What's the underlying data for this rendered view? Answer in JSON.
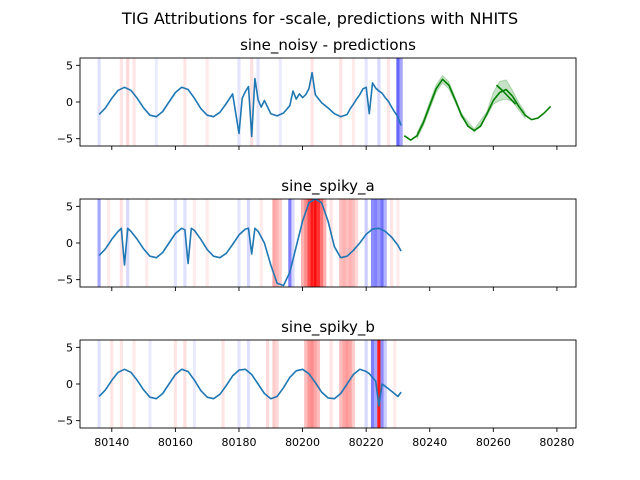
{
  "figure": {
    "suptitle": "TIG Attributions for -scale, predictions with NHITS"
  },
  "chart_data": [
    {
      "type": "line",
      "title": "sine_noisy - predictions",
      "xlim": [
        80130,
        80286
      ],
      "ylim": [
        -6,
        6
      ],
      "yticks": [
        5,
        0,
        -5
      ],
      "xticks": [
        80140,
        80160,
        80180,
        80200,
        80220,
        80240,
        80260,
        80280
      ],
      "show_xtick_labels": false,
      "series": [
        {
          "role": "history",
          "color": "#1f77b4",
          "x": [
            80136,
            80138,
            80140,
            80142,
            80144,
            80146,
            80148,
            80150,
            80152,
            80154,
            80156,
            80158,
            80160,
            80162,
            80164,
            80166,
            80168,
            80170,
            80172,
            80174,
            80176,
            80178,
            80180,
            80181,
            80182,
            80183,
            80184,
            80185,
            80186,
            80187,
            80188,
            80190,
            80192,
            80194,
            80196,
            80197,
            80198,
            80199,
            80200,
            80201,
            80202,
            80203,
            80204,
            80206,
            80208,
            80210,
            80212,
            80214,
            80215,
            80216,
            80217,
            80218,
            80219,
            80220,
            80221,
            80222,
            80223,
            80224,
            80225,
            80226,
            80227,
            80228,
            80229,
            80230,
            80231
          ],
          "y": [
            -1.7,
            -0.8,
            0.5,
            1.6,
            2.0,
            1.6,
            0.5,
            -0.8,
            -1.8,
            -2.0,
            -1.3,
            0.0,
            1.3,
            2.0,
            1.7,
            0.5,
            -0.9,
            -1.8,
            -2.0,
            -1.4,
            -0.2,
            1.1,
            -4.3,
            0.5,
            1.4,
            2.1,
            -4.7,
            3.2,
            0.3,
            -0.7,
            0.2,
            -1.6,
            -1.9,
            -1.5,
            -0.5,
            1.5,
            0.4,
            1.1,
            0.6,
            1.0,
            1.8,
            4.0,
            1.0,
            -0.1,
            -0.8,
            -1.6,
            -2.0,
            -1.7,
            -0.9,
            -0.3,
            0.4,
            1.0,
            1.8,
            2.0,
            -1.6,
            2.6,
            1.9,
            1.5,
            1.2,
            0.6,
            0.1,
            -0.7,
            -1.4,
            -2.0,
            -3.2
          ]
        },
        {
          "role": "forecast",
          "color": "#008000",
          "x": [
            80232,
            80234,
            80236,
            80238,
            80240,
            80242,
            80244,
            80246,
            80248,
            80250,
            80252,
            80254,
            80256,
            80258,
            80260,
            80262,
            80264,
            80266,
            80268,
            80270,
            80272,
            80274,
            80276,
            80278
          ],
          "y": [
            -4.6,
            -5.2,
            -4.6,
            -2.8,
            -0.5,
            1.8,
            3.1,
            2.3,
            0.3,
            -1.8,
            -3.3,
            -3.9,
            -3.3,
            -1.6,
            0.2,
            1.3,
            1.7,
            0.8,
            -0.6,
            -1.8,
            -2.4,
            -2.2,
            -1.5,
            -0.6
          ]
        },
        {
          "role": "forecast-segment",
          "color": "#008000",
          "x": [
            80261,
            80263,
            80265,
            80267
          ],
          "y": [
            2.3,
            1.5,
            0.6,
            -0.3
          ]
        }
      ],
      "interval": {
        "color": "#008000",
        "x": [
          80236,
          80238,
          80240,
          80242,
          80244,
          80246,
          80248,
          80250,
          80254,
          80258,
          80260,
          80262,
          80264,
          80266,
          80268,
          80270
        ],
        "upper": [
          -4.2,
          -2.4,
          0.0,
          2.3,
          3.6,
          2.8,
          0.6,
          -1.6,
          -3.7,
          -1.3,
          1.3,
          2.8,
          3.0,
          1.6,
          -0.1,
          -1.4
        ],
        "lower": [
          -5.0,
          -3.2,
          -1.0,
          1.3,
          2.6,
          1.8,
          0.0,
          -2.1,
          -4.1,
          -1.9,
          -0.3,
          0.2,
          0.4,
          0.1,
          -1.1,
          -2.2
        ]
      },
      "attribution_bands": [
        {
          "x": 80136,
          "sign": "neg",
          "strength": 0.12
        },
        {
          "x": 80143,
          "sign": "pos",
          "strength": 0.1
        },
        {
          "x": 80145,
          "sign": "pos",
          "strength": 0.15
        },
        {
          "x": 80147,
          "sign": "pos",
          "strength": 0.1
        },
        {
          "x": 80154,
          "sign": "neg",
          "strength": 0.08
        },
        {
          "x": 80163,
          "sign": "pos",
          "strength": 0.1
        },
        {
          "x": 80170,
          "sign": "pos",
          "strength": 0.08
        },
        {
          "x": 80180,
          "sign": "neg",
          "strength": 0.1
        },
        {
          "x": 80184,
          "sign": "pos",
          "strength": 0.12
        },
        {
          "x": 80186,
          "sign": "neg",
          "strength": 0.1
        },
        {
          "x": 80193,
          "sign": "neg",
          "strength": 0.08
        },
        {
          "x": 80203,
          "sign": "pos",
          "strength": 0.1
        },
        {
          "x": 80212,
          "sign": "pos",
          "strength": 0.1
        },
        {
          "x": 80216,
          "sign": "pos",
          "strength": 0.08
        },
        {
          "x": 80220,
          "sign": "neg",
          "strength": 0.1
        },
        {
          "x": 80224,
          "sign": "neg",
          "strength": 0.15
        },
        {
          "x": 80227,
          "sign": "pos",
          "strength": 0.1
        },
        {
          "x": 80230,
          "sign": "neg",
          "strength": 0.6
        },
        {
          "x": 80231,
          "sign": "neg",
          "strength": 0.35
        }
      ]
    },
    {
      "type": "line",
      "title": "sine_spiky_a",
      "xlim": [
        80130,
        80286
      ],
      "ylim": [
        -6,
        6
      ],
      "yticks": [
        5,
        0,
        -5
      ],
      "xticks": [
        80140,
        80160,
        80180,
        80200,
        80220,
        80240,
        80260,
        80280
      ],
      "show_xtick_labels": false,
      "series": [
        {
          "role": "history",
          "color": "#1f77b4",
          "x": [
            80136,
            80138,
            80140,
            80142,
            80143,
            80144,
            80145,
            80146,
            80148,
            80150,
            80152,
            80154,
            80156,
            80158,
            80160,
            80162,
            80163,
            80164,
            80165,
            80166,
            80168,
            80170,
            80172,
            80174,
            80176,
            80178,
            80180,
            80182,
            80183,
            80184,
            80185,
            80186,
            80188,
            80190,
            80192,
            80194,
            80196,
            80198,
            80200,
            80202,
            80204,
            80206,
            80208,
            80210,
            80212,
            80214,
            80216,
            80218,
            80220,
            80222,
            80224,
            80226,
            80228,
            80230,
            80231
          ],
          "y": [
            -1.7,
            -0.8,
            0.5,
            1.6,
            2.0,
            -3.0,
            2.0,
            1.6,
            0.5,
            -0.8,
            -1.8,
            -2.0,
            -1.3,
            0.0,
            1.3,
            2.0,
            1.8,
            -2.8,
            2.0,
            1.7,
            0.5,
            -0.9,
            -1.8,
            -2.0,
            -1.4,
            -0.2,
            1.1,
            1.9,
            2.0,
            -1.5,
            2.0,
            1.6,
            0.0,
            -3.0,
            -5.5,
            -5.8,
            -4.0,
            -0.5,
            3.0,
            5.5,
            6.0,
            5.5,
            3.0,
            -0.5,
            -2.0,
            -1.8,
            -1.0,
            0.0,
            1.2,
            1.9,
            2.0,
            1.6,
            0.8,
            -0.3,
            -1.1
          ]
        }
      ],
      "attribution_bands": [
        {
          "x": 80136,
          "sign": "neg",
          "strength": 0.35
        },
        {
          "x": 80139,
          "sign": "pos",
          "strength": 0.08
        },
        {
          "x": 80143,
          "sign": "pos",
          "strength": 0.12
        },
        {
          "x": 80145,
          "sign": "neg",
          "strength": 0.15
        },
        {
          "x": 80151,
          "sign": "pos",
          "strength": 0.08
        },
        {
          "x": 80160,
          "sign": "neg",
          "strength": 0.1
        },
        {
          "x": 80163,
          "sign": "neg",
          "strength": 0.12
        },
        {
          "x": 80166,
          "sign": "pos",
          "strength": 0.08
        },
        {
          "x": 80170,
          "sign": "pos",
          "strength": 0.08
        },
        {
          "x": 80180,
          "sign": "neg",
          "strength": 0.1
        },
        {
          "x": 80183,
          "sign": "neg",
          "strength": 0.15
        },
        {
          "x": 80187,
          "sign": "pos",
          "strength": 0.08
        },
        {
          "x": 80191,
          "sign": "pos",
          "strength": 0.35
        },
        {
          "x": 80192,
          "sign": "pos",
          "strength": 0.3
        },
        {
          "x": 80193,
          "sign": "pos",
          "strength": 0.2
        },
        {
          "x": 80196,
          "sign": "neg",
          "strength": 0.5
        },
        {
          "x": 80197,
          "sign": "neg",
          "strength": 0.15
        },
        {
          "x": 80200,
          "sign": "pos",
          "strength": 0.3
        },
        {
          "x": 80201,
          "sign": "pos",
          "strength": 0.45
        },
        {
          "x": 80202,
          "sign": "pos",
          "strength": 0.7
        },
        {
          "x": 80203,
          "sign": "pos",
          "strength": 0.9
        },
        {
          "x": 80204,
          "sign": "pos",
          "strength": 0.95
        },
        {
          "x": 80205,
          "sign": "pos",
          "strength": 0.8
        },
        {
          "x": 80206,
          "sign": "pos",
          "strength": 0.55
        },
        {
          "x": 80207,
          "sign": "pos",
          "strength": 0.3
        },
        {
          "x": 80209,
          "sign": "pos",
          "strength": 0.1
        },
        {
          "x": 80212,
          "sign": "pos",
          "strength": 0.25
        },
        {
          "x": 80213,
          "sign": "pos",
          "strength": 0.3
        },
        {
          "x": 80214,
          "sign": "pos",
          "strength": 0.25
        },
        {
          "x": 80215,
          "sign": "pos",
          "strength": 0.3
        },
        {
          "x": 80216,
          "sign": "pos",
          "strength": 0.25
        },
        {
          "x": 80217,
          "sign": "pos",
          "strength": 0.15
        },
        {
          "x": 80220,
          "sign": "neg",
          "strength": 0.2
        },
        {
          "x": 80222,
          "sign": "neg",
          "strength": 0.45
        },
        {
          "x": 80223,
          "sign": "neg",
          "strength": 0.5
        },
        {
          "x": 80224,
          "sign": "neg",
          "strength": 0.4
        },
        {
          "x": 80225,
          "sign": "neg",
          "strength": 0.55
        },
        {
          "x": 80226,
          "sign": "neg",
          "strength": 0.3
        },
        {
          "x": 80228,
          "sign": "pos",
          "strength": 0.1
        },
        {
          "x": 80230,
          "sign": "pos",
          "strength": 0.08
        }
      ]
    },
    {
      "type": "line",
      "title": "sine_spiky_b",
      "xlim": [
        80130,
        80286
      ],
      "ylim": [
        -6,
        6
      ],
      "yticks": [
        5,
        0,
        -5
      ],
      "xticks": [
        80140,
        80160,
        80180,
        80200,
        80220,
        80240,
        80260,
        80280
      ],
      "show_xtick_labels": true,
      "series": [
        {
          "role": "history",
          "color": "#1f77b4",
          "x": [
            80136,
            80138,
            80140,
            80142,
            80144,
            80146,
            80148,
            80150,
            80152,
            80154,
            80156,
            80158,
            80160,
            80162,
            80164,
            80166,
            80168,
            80170,
            80172,
            80174,
            80176,
            80178,
            80180,
            80182,
            80184,
            80186,
            80188,
            80190,
            80192,
            80194,
            80196,
            80198,
            80200,
            80202,
            80204,
            80206,
            80208,
            80210,
            80212,
            80214,
            80216,
            80218,
            80220,
            80221,
            80222,
            80223,
            80224,
            80225,
            80226,
            80228,
            80230,
            80231
          ],
          "y": [
            -1.7,
            -0.8,
            0.5,
            1.6,
            2.0,
            1.6,
            0.5,
            -0.8,
            -1.8,
            -2.0,
            -1.3,
            0.0,
            1.3,
            2.0,
            1.7,
            0.5,
            -0.9,
            -1.8,
            -2.0,
            -1.4,
            -0.2,
            1.1,
            1.9,
            2.0,
            1.3,
            0.0,
            -1.3,
            -2.0,
            -1.7,
            -0.5,
            0.9,
            1.8,
            2.0,
            1.4,
            0.2,
            -1.1,
            -1.9,
            -2.0,
            -1.3,
            0.0,
            1.3,
            2.0,
            1.7,
            1.4,
            0.9,
            0.4,
            -3.0,
            0.0,
            -0.3,
            -1.0,
            -1.7,
            -1.1
          ]
        }
      ],
      "attribution_bands": [
        {
          "x": 80136,
          "sign": "neg",
          "strength": 0.12
        },
        {
          "x": 80140,
          "sign": "pos",
          "strength": 0.1
        },
        {
          "x": 80143,
          "sign": "pos",
          "strength": 0.1
        },
        {
          "x": 80147,
          "sign": "pos",
          "strength": 0.08
        },
        {
          "x": 80152,
          "sign": "neg",
          "strength": 0.08
        },
        {
          "x": 80160,
          "sign": "pos",
          "strength": 0.1
        },
        {
          "x": 80163,
          "sign": "pos",
          "strength": 0.12
        },
        {
          "x": 80166,
          "sign": "neg",
          "strength": 0.08
        },
        {
          "x": 80175,
          "sign": "pos",
          "strength": 0.1
        },
        {
          "x": 80180,
          "sign": "neg",
          "strength": 0.1
        },
        {
          "x": 80183,
          "sign": "neg",
          "strength": 0.12
        },
        {
          "x": 80189,
          "sign": "pos",
          "strength": 0.15
        },
        {
          "x": 80191,
          "sign": "pos",
          "strength": 0.2
        },
        {
          "x": 80192,
          "sign": "pos",
          "strength": 0.15
        },
        {
          "x": 80201,
          "sign": "pos",
          "strength": 0.25
        },
        {
          "x": 80202,
          "sign": "pos",
          "strength": 0.4
        },
        {
          "x": 80203,
          "sign": "pos",
          "strength": 0.45
        },
        {
          "x": 80204,
          "sign": "pos",
          "strength": 0.35
        },
        {
          "x": 80205,
          "sign": "pos",
          "strength": 0.25
        },
        {
          "x": 80209,
          "sign": "pos",
          "strength": 0.1
        },
        {
          "x": 80212,
          "sign": "pos",
          "strength": 0.25
        },
        {
          "x": 80213,
          "sign": "pos",
          "strength": 0.35
        },
        {
          "x": 80214,
          "sign": "pos",
          "strength": 0.4
        },
        {
          "x": 80215,
          "sign": "pos",
          "strength": 0.35
        },
        {
          "x": 80216,
          "sign": "pos",
          "strength": 0.2
        },
        {
          "x": 80220,
          "sign": "neg",
          "strength": 0.15
        },
        {
          "x": 80222,
          "sign": "neg",
          "strength": 0.5
        },
        {
          "x": 80223,
          "sign": "neg",
          "strength": 0.35
        },
        {
          "x": 80224,
          "sign": "pos",
          "strength": 0.9
        },
        {
          "x": 80225,
          "sign": "neg",
          "strength": 0.45
        },
        {
          "x": 80226,
          "sign": "neg",
          "strength": 0.2
        },
        {
          "x": 80229,
          "sign": "pos",
          "strength": 0.08
        }
      ]
    }
  ]
}
